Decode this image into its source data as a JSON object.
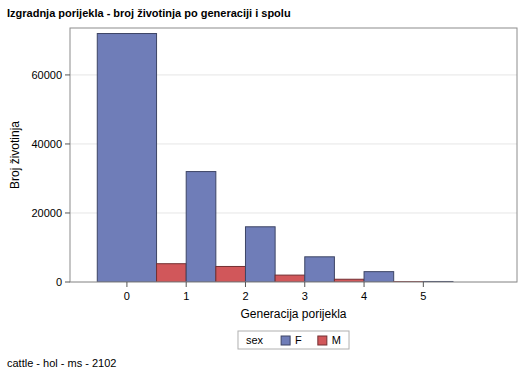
{
  "chart_data": {
    "type": "bar",
    "title": "Izgradnja porijekla - broj životinja po generaciji i spolu",
    "x_label": "Generacija porijekla",
    "y_label": "Broj životinja",
    "footnote": "cattle - hol - ms - 2102",
    "legend_title": "sex",
    "legend": "bottom",
    "grid": true,
    "categories": [
      "0",
      "1",
      "2",
      "3",
      "4",
      "5"
    ],
    "series": [
      {
        "name": "F",
        "color": "#6f7db8",
        "values": [
          72000,
          32000,
          16000,
          7300,
          3000,
          150
        ]
      },
      {
        "name": "M",
        "color": "#d1575a",
        "values": [
          null,
          5300,
          4500,
          2000,
          800,
          100
        ]
      }
    ],
    "ylim": [
      0,
      73600
    ],
    "yticks": [
      0,
      20000,
      40000,
      60000
    ]
  }
}
